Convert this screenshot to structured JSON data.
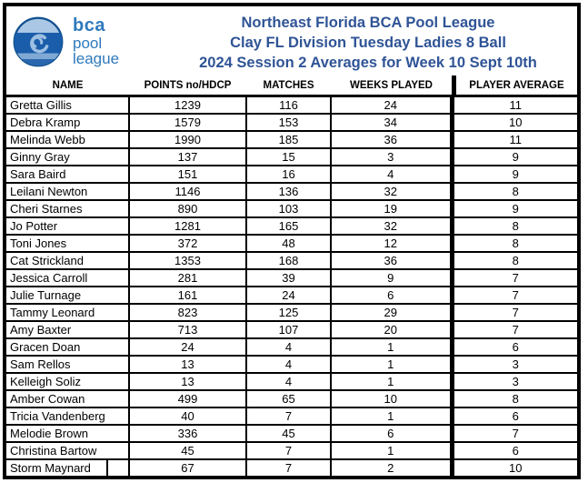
{
  "header": {
    "logo": {
      "line1": "bca",
      "line2": "pool",
      "line3": "league"
    },
    "titles": [
      "Northeast Florida BCA Pool League",
      "Clay FL Division Tuesday Ladies 8 Ball",
      "2024 Session 2 Averages for Week 10 Sept 10th"
    ]
  },
  "table": {
    "columns": [
      "NAME",
      "POINTS no/HDCP",
      "MATCHES",
      "WEEKS PLAYED",
      "PLAYER AVERAGE"
    ],
    "rows": [
      [
        "Gretta Gillis",
        "1239",
        "116",
        "24",
        "11"
      ],
      [
        "Debra Kramp",
        "1579",
        "153",
        "34",
        "10"
      ],
      [
        "Melinda Webb",
        "1990",
        "185",
        "36",
        "11"
      ],
      [
        "Ginny Gray",
        "137",
        "15",
        "3",
        "9"
      ],
      [
        "Sara Baird",
        "151",
        "16",
        "4",
        "9"
      ],
      [
        "Leilani Newton",
        "1146",
        "136",
        "32",
        "8"
      ],
      [
        "Cheri Starnes",
        "890",
        "103",
        "19",
        "9"
      ],
      [
        "Jo Potter",
        "1281",
        "165",
        "32",
        "8"
      ],
      [
        "Toni Jones",
        "372",
        "48",
        "12",
        "8"
      ],
      [
        "Cat Strickland",
        "1353",
        "168",
        "36",
        "8"
      ],
      [
        "Jessica Carroll",
        "281",
        "39",
        "9",
        "7"
      ],
      [
        "Julie Turnage",
        "161",
        "24",
        "6",
        "7"
      ],
      [
        "Tammy Leonard",
        "823",
        "125",
        "29",
        "7"
      ],
      [
        "Amy Baxter",
        "713",
        "107",
        "20",
        "7"
      ],
      [
        "Gracen Doan",
        "24",
        "4",
        "1",
        "6"
      ],
      [
        "Sam Rellos",
        "13",
        "4",
        "1",
        "3"
      ],
      [
        "Kelleigh Soliz",
        "13",
        "4",
        "1",
        "3"
      ],
      [
        "Amber Cowan",
        "499",
        "65",
        "10",
        "8"
      ],
      [
        "Tricia Vandenberg",
        "40",
        "7",
        "1",
        "6"
      ],
      [
        "Melodie Brown",
        "336",
        "45",
        "6",
        "7"
      ],
      [
        "Christina Bartow",
        "45",
        "7",
        "1",
        "6"
      ],
      [
        "Storm Maynard",
        "67",
        "7",
        "2",
        "10"
      ]
    ]
  },
  "colors": {
    "title_blue": "#2f5496",
    "logo_blue": "#2e79bd",
    "ball_dark": "#1a5dab",
    "ball_light": "#aac8e6",
    "ball_swirl": "#9dbfe2",
    "grid_black": "#000000"
  }
}
